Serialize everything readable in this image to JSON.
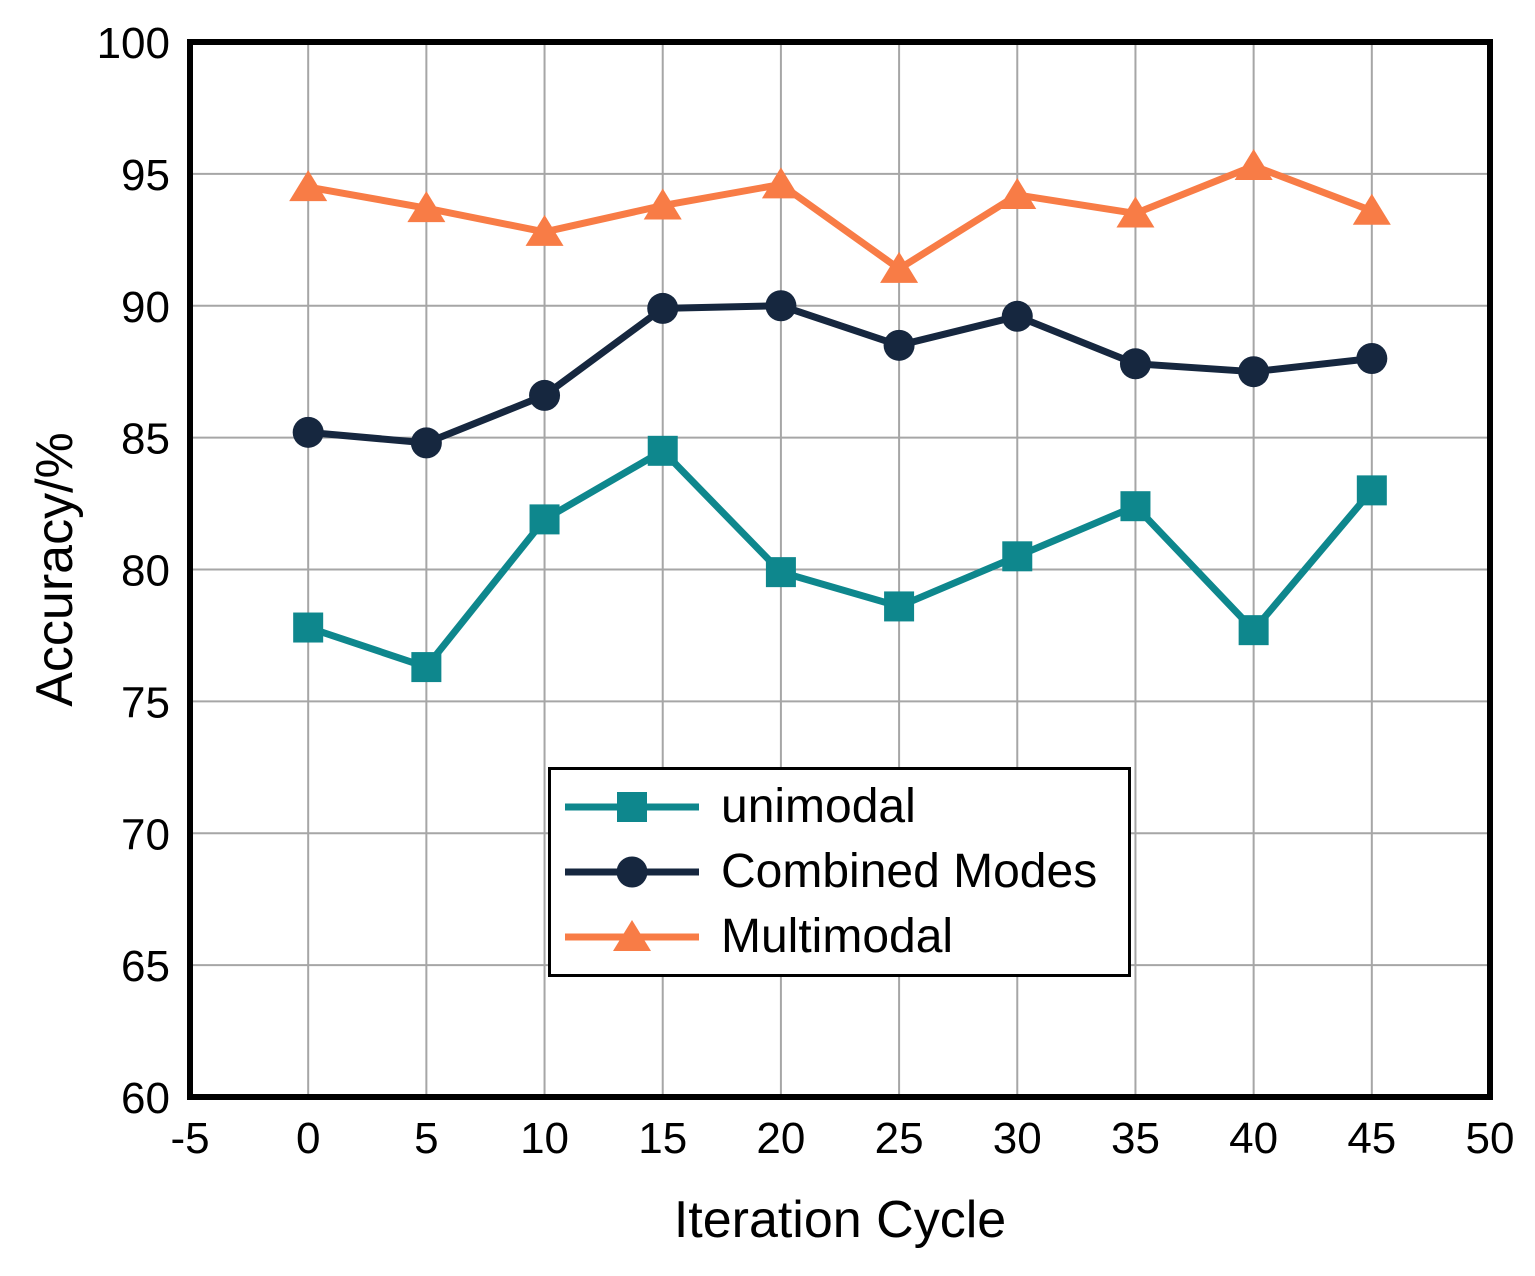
{
  "chart_data": {
    "type": "line",
    "title": "",
    "xlabel": "Iteration Cycle",
    "ylabel": "Accuracy/%",
    "x": [
      0,
      5,
      10,
      15,
      20,
      25,
      30,
      35,
      40,
      45
    ],
    "xlim": [
      -5,
      50
    ],
    "ylim": [
      60,
      100
    ],
    "x_ticks": [
      -5,
      0,
      5,
      10,
      15,
      20,
      25,
      30,
      35,
      40,
      45,
      50
    ],
    "y_ticks": [
      100,
      95,
      90,
      85,
      80,
      75,
      70,
      65,
      60
    ],
    "grid": true,
    "legend_position": "inside lower-center",
    "series": [
      {
        "name": "unimodal",
        "marker": "square",
        "color": "#0E878D",
        "values": [
          77.8,
          76.3,
          81.9,
          84.5,
          79.9,
          78.6,
          80.5,
          82.4,
          77.7,
          83.0
        ]
      },
      {
        "name": "Combined Modes",
        "marker": "circle",
        "color": "#16273F",
        "values": [
          85.2,
          84.8,
          86.6,
          89.9,
          90.0,
          88.5,
          89.6,
          87.8,
          87.5,
          88.0
        ]
      },
      {
        "name": "Multimodal",
        "marker": "triangle-up",
        "color": "#F87C46",
        "values": [
          94.5,
          93.7,
          92.8,
          93.8,
          94.6,
          91.4,
          94.2,
          93.5,
          95.3,
          93.6
        ]
      }
    ]
  },
  "colors": {
    "grid": "#A6A6A6",
    "axis_frame": "#000000",
    "background": "#FFFFFF",
    "text": "#000000"
  }
}
